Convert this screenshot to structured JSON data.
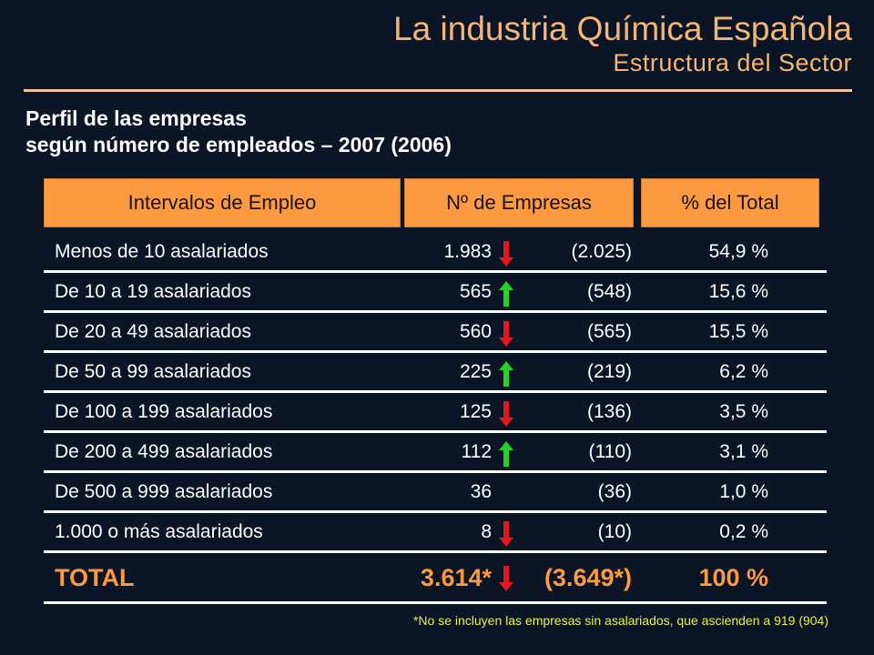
{
  "header": {
    "title": "La industria Química Española",
    "subtitle": "Estructura del Sector"
  },
  "heading": {
    "line1": "Perfil de las empresas",
    "line2": "según número de empleados – 2007 (2006)"
  },
  "table": {
    "columns": [
      "Intervalos de Empleo",
      "Nº de Empresas",
      "% del Total"
    ],
    "rows": [
      {
        "label": "Menos de 10 asalariados",
        "num": "1.983",
        "trend": "down",
        "prev": "(2.025)",
        "pct": "54,9 %"
      },
      {
        "label": "De 10 a 19 asalariados",
        "num": "565",
        "trend": "up",
        "prev": "(548)",
        "pct": "15,6 %"
      },
      {
        "label": "De 20 a 49 asalariados",
        "num": "560",
        "trend": "down",
        "prev": "(565)",
        "pct": "15,5 %"
      },
      {
        "label": "De 50 a 99 asalariados",
        "num": "225",
        "trend": "up",
        "prev": "(219)",
        "pct": "6,2 %"
      },
      {
        "label": "De 100 a 199 asalariados",
        "num": "125",
        "trend": "down",
        "prev": "(136)",
        "pct": "3,5 %"
      },
      {
        "label": "De 200 a 499 asalariados",
        "num": "112",
        "trend": "up",
        "prev": "(110)",
        "pct": "3,1 %"
      },
      {
        "label": "De 500 a 999 asalariados",
        "num": "36",
        "trend": "none",
        "prev": "(36)",
        "pct": "1,0 %"
      },
      {
        "label": "1.000 o más asalariados",
        "num": "8",
        "trend": "down",
        "prev": "(10)",
        "pct": "0,2 %"
      }
    ],
    "total": {
      "label": "TOTAL",
      "num": "3.614*",
      "trend": "down",
      "prev": "(3.649*)",
      "pct": "100 %"
    }
  },
  "footnote": "*No se incluyen las empresas sin asalariados, que ascienden a 919 (904)",
  "colors": {
    "accent": "#fb9a40",
    "title": "#f2b778",
    "up_arrow": "#22d12a",
    "down_arrow": "#e3171b",
    "background": "#0b1526",
    "footnote": "#e8f04a"
  }
}
